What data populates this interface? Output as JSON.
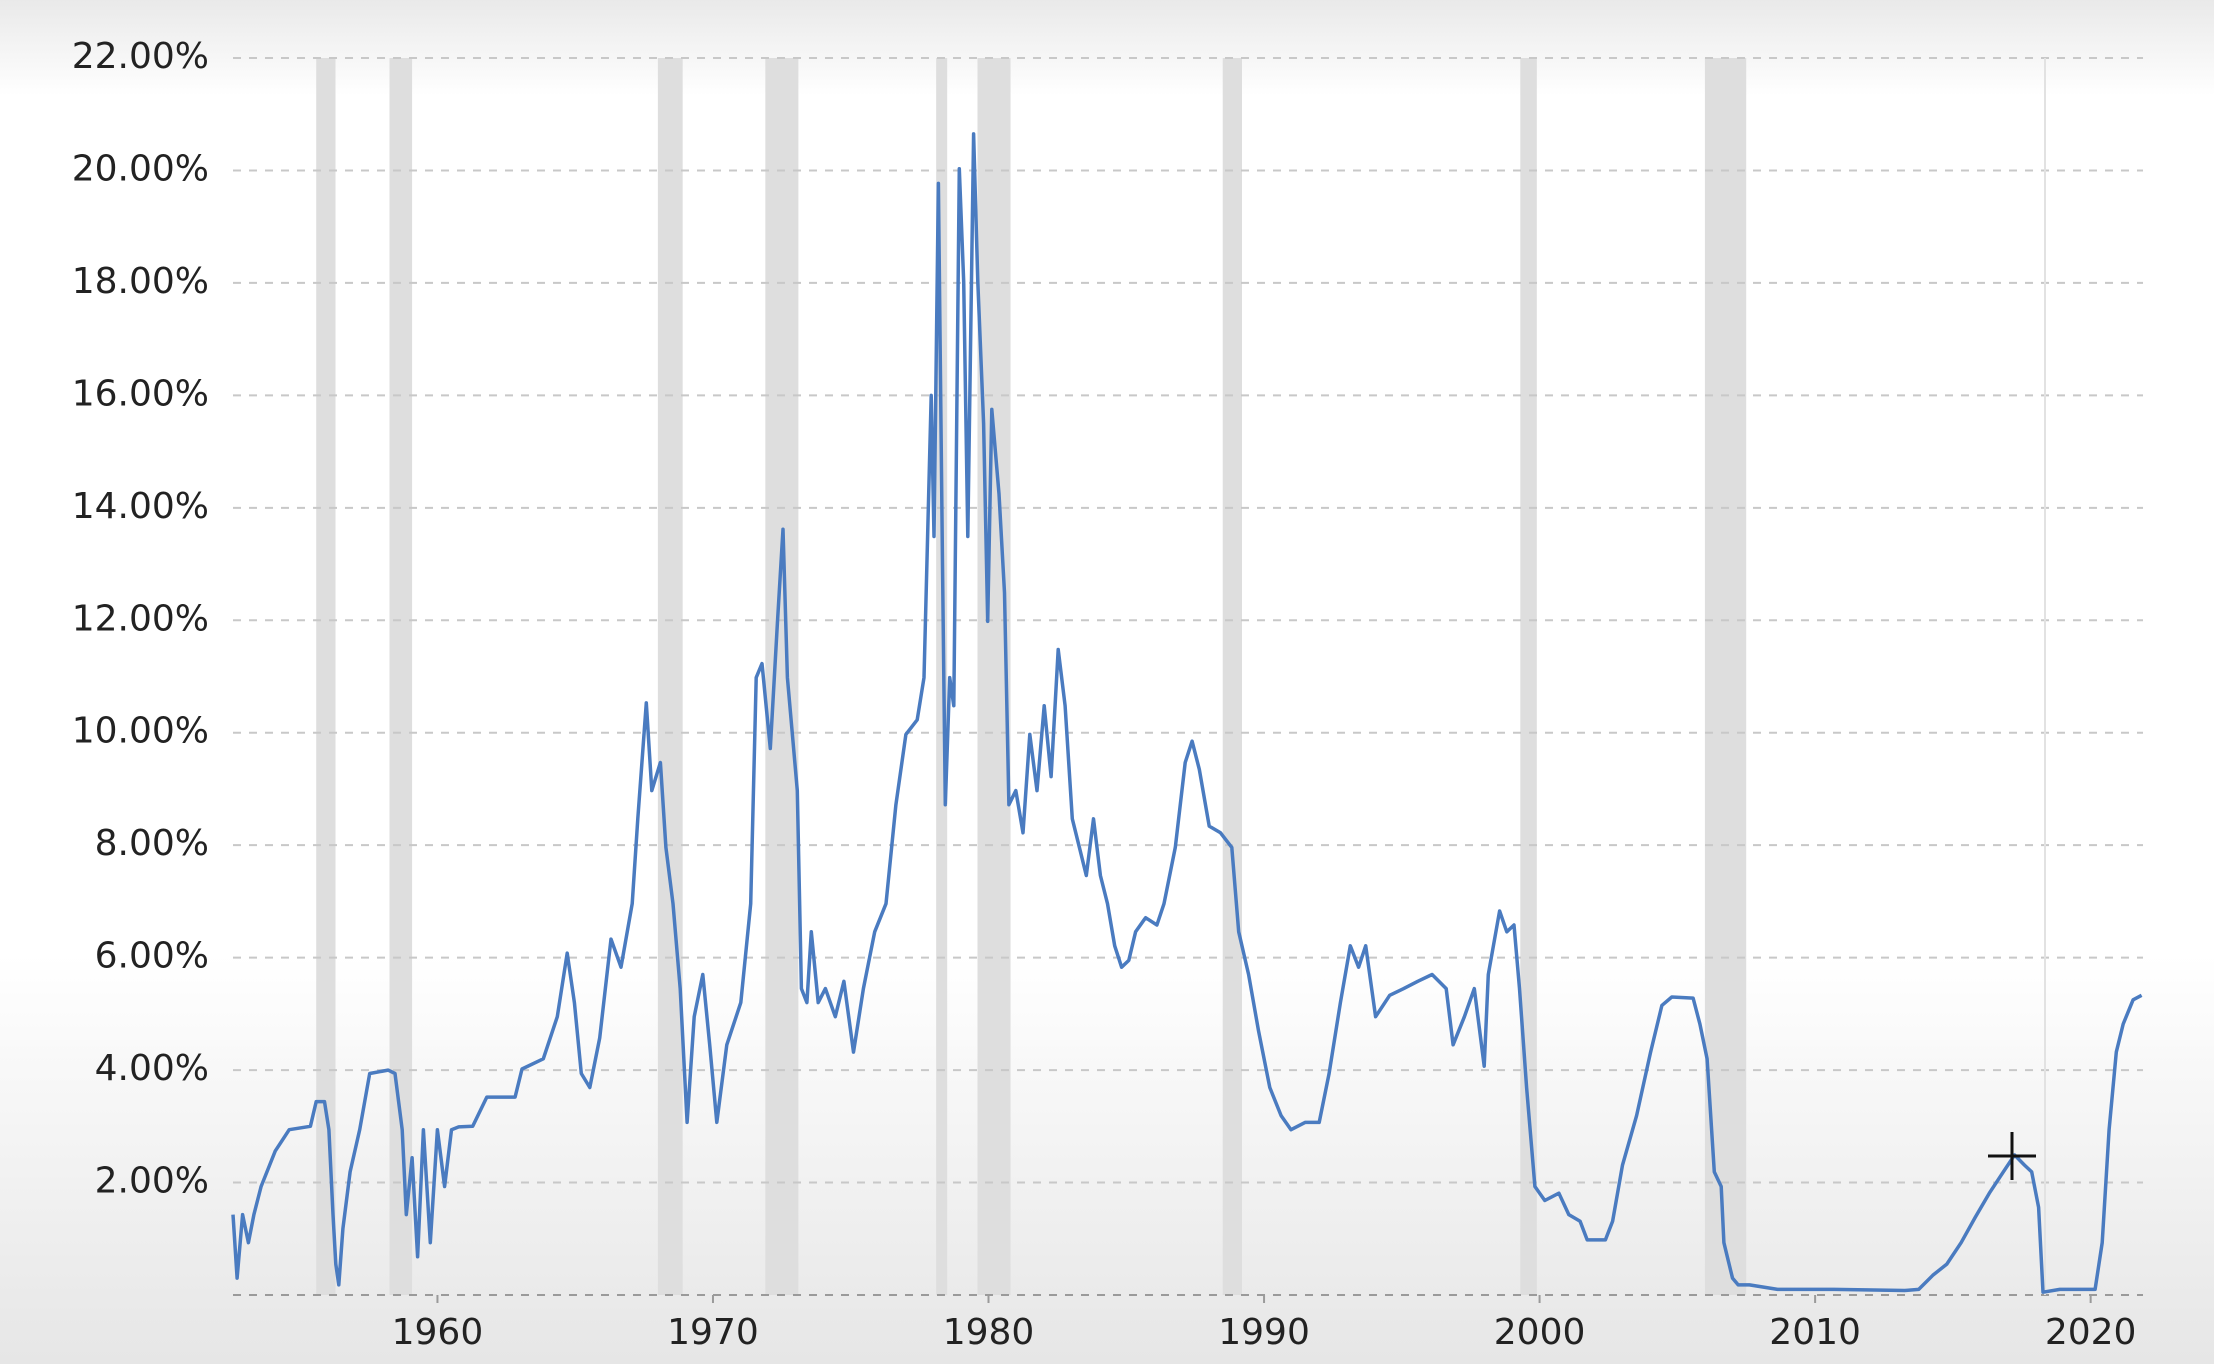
{
  "chart_data": {
    "type": "line",
    "xlim": [
      1952.58,
      2021.9
    ],
    "xticks": [
      1960,
      1970,
      1980,
      1990,
      2000,
      2010,
      2020
    ],
    "ylim": [
      0,
      22
    ],
    "yticks": [
      {
        "value": 2,
        "label": "2.00%"
      },
      {
        "value": 4,
        "label": "4.00%"
      },
      {
        "value": 6,
        "label": "6.00%"
      },
      {
        "value": 8,
        "label": "8.00%"
      },
      {
        "value": 10,
        "label": "10.00%"
      },
      {
        "value": 12,
        "label": "12.00%"
      },
      {
        "value": 14,
        "label": "14.00%"
      },
      {
        "value": 16,
        "label": "16.00%"
      },
      {
        "value": 18,
        "label": "18.00%"
      },
      {
        "value": 20,
        "label": "20.00%"
      },
      {
        "value": 22,
        "label": "22.00%"
      }
    ],
    "grid": true,
    "recession_color": "#dedede",
    "recessions": [
      [
        1955.6,
        1956.3
      ],
      [
        1958.26,
        1959.08
      ],
      [
        1968.0,
        1968.9
      ],
      [
        1971.9,
        1973.1
      ],
      [
        1978.1,
        1978.5
      ],
      [
        1979.6,
        1980.8
      ],
      [
        1988.5,
        1989.2
      ],
      [
        1999.3,
        1999.9
      ],
      [
        2006.0,
        2007.5
      ]
    ],
    "x": [
      1952.58,
      1952.73,
      1952.93,
      1953.14,
      1953.34,
      1953.6,
      1954.11,
      1954.62,
      1955.39,
      1955.6,
      1955.9,
      1956.06,
      1956.21,
      1956.31,
      1956.42,
      1956.57,
      1956.83,
      1957.18,
      1957.54,
      1958.21,
      1958.46,
      1958.72,
      1958.87,
      1959.08,
      1959.28,
      1959.49,
      1959.74,
      1960,
      1960.26,
      1960.51,
      1960.77,
      1961.28,
      1961.79,
      1962.82,
      1963.07,
      1963.84,
      1964.35,
      1964.71,
      1964.97,
      1965.22,
      1965.53,
      1965.89,
      1966.3,
      1966.66,
      1967.07,
      1967.27,
      1967.58,
      1967.78,
      1968.09,
      1968.29,
      1968.55,
      1968.81,
      1969.06,
      1969.32,
      1969.63,
      1969.88,
      1970.14,
      1970.5,
      1971.01,
      1971.37,
      1971.57,
      1971.78,
      1972.08,
      1972.34,
      1972.54,
      1972.7,
      1973.06,
      1973.21,
      1973.41,
      1973.57,
      1973.82,
      1974.08,
      1974.44,
      1974.75,
      1975.1,
      1975.46,
      1975.87,
      1976.28,
      1976.64,
      1977.0,
      1977.41,
      1977.66,
      1977.92,
      1978.02,
      1978.18,
      1978.33,
      1978.43,
      1978.59,
      1978.74,
      1978.94,
      1979.1,
      1979.25,
      1979.46,
      1979.61,
      1979.82,
      1979.97,
      1980.12,
      1980.38,
      1980.58,
      1980.74,
      1980.99,
      1981.25,
      1981.5,
      1981.76,
      1982.02,
      1982.27,
      1982.53,
      1982.78,
      1983.04,
      1983.3,
      1983.55,
      1983.81,
      1984.06,
      1984.32,
      1984.58,
      1984.83,
      1985.09,
      1985.34,
      1985.7,
      1986.11,
      1986.37,
      1986.78,
      1987.14,
      1987.39,
      1987.65,
      1988.01,
      1988.42,
      1988.83,
      1989.08,
      1989.44,
      1989.8,
      1990.21,
      1990.62,
      1990.98,
      1991.49,
      1992.0,
      1992.36,
      1992.77,
      1993.13,
      1993.43,
      1993.69,
      1994.05,
      1994.56,
      1995.07,
      1995.58,
      1996.1,
      1996.61,
      1996.86,
      1997.27,
      1997.63,
      1997.99,
      1998.14,
      1998.55,
      1998.81,
      1999.07,
      1999.27,
      1999.53,
      1999.83,
      2000.19,
      2000.7,
      2001.06,
      2001.47,
      2001.73,
      2002.39,
      2002.65,
      2003.01,
      2003.52,
      2004.03,
      2004.44,
      2004.8,
      2005.57,
      2005.82,
      2006.08,
      2006.34,
      2006.59,
      2006.69,
      2007.0,
      2007.21,
      2007.62,
      2008.64,
      2010.69,
      2013.25,
      2013.76,
      2014.27,
      2014.78,
      2015.3,
      2015.81,
      2016.32,
      2016.83,
      2017.24,
      2017.6,
      2017.86,
      2018.11,
      2018.27,
      2018.88,
      2020.16,
      2020.42,
      2020.67,
      2020.93,
      2021.18,
      2021.54,
      2021.85
    ],
    "series": [
      {
        "color": "#4a7bc0",
        "values": [
          1.43,
          0.3,
          1.43,
          0.93,
          1.43,
          1.93,
          2.56,
          2.94,
          3.0,
          3.44,
          3.44,
          2.94,
          1.43,
          0.55,
          0.18,
          1.18,
          2.19,
          2.94,
          3.94,
          4.0,
          3.94,
          2.94,
          1.43,
          2.44,
          0.68,
          2.94,
          0.93,
          2.94,
          1.93,
          2.94,
          2.99,
          3.0,
          3.52,
          3.52,
          4.02,
          4.2,
          4.95,
          6.08,
          5.2,
          3.94,
          3.69,
          4.57,
          6.33,
          5.83,
          6.96,
          8.47,
          10.53,
          8.97,
          9.47,
          7.96,
          6.96,
          5.45,
          3.07,
          4.95,
          5.7,
          4.45,
          3.07,
          4.45,
          5.2,
          6.96,
          10.98,
          11.23,
          9.72,
          11.98,
          13.62,
          10.98,
          8.97,
          5.45,
          5.2,
          6.46,
          5.2,
          5.45,
          4.95,
          5.58,
          4.32,
          5.45,
          6.46,
          6.96,
          8.72,
          9.97,
          10.23,
          10.98,
          16.0,
          13.49,
          19.77,
          12.99,
          8.72,
          10.98,
          10.48,
          20.03,
          18.02,
          13.49,
          20.65,
          18.02,
          15.5,
          11.98,
          15.75,
          14.25,
          12.49,
          8.72,
          8.97,
          8.22,
          9.97,
          8.97,
          10.48,
          9.22,
          11.48,
          10.48,
          8.47,
          7.96,
          7.46,
          8.47,
          7.46,
          6.96,
          6.21,
          5.83,
          5.95,
          6.46,
          6.71,
          6.58,
          6.96,
          7.96,
          9.47,
          9.85,
          9.35,
          8.34,
          8.22,
          7.96,
          6.46,
          5.7,
          4.7,
          3.69,
          3.19,
          2.94,
          3.07,
          3.07,
          3.94,
          5.2,
          6.21,
          5.83,
          6.21,
          4.95,
          5.33,
          5.45,
          5.58,
          5.7,
          5.45,
          4.45,
          4.95,
          5.45,
          4.07,
          5.7,
          6.83,
          6.46,
          6.58,
          5.45,
          3.69,
          1.93,
          1.68,
          1.81,
          1.43,
          1.31,
          0.98,
          0.98,
          1.31,
          2.31,
          3.19,
          4.32,
          5.15,
          5.3,
          5.28,
          4.82,
          4.2,
          2.19,
          1.93,
          0.93,
          0.3,
          0.18,
          0.18,
          0.1,
          0.1,
          0.08,
          0.1,
          0.35,
          0.55,
          0.93,
          1.38,
          1.81,
          2.19,
          2.49,
          2.31,
          2.19,
          1.56,
          0.05,
          0.1,
          0.1,
          0.93,
          2.94,
          4.32,
          4.82,
          5.25,
          5.33
        ]
      }
    ]
  }
}
